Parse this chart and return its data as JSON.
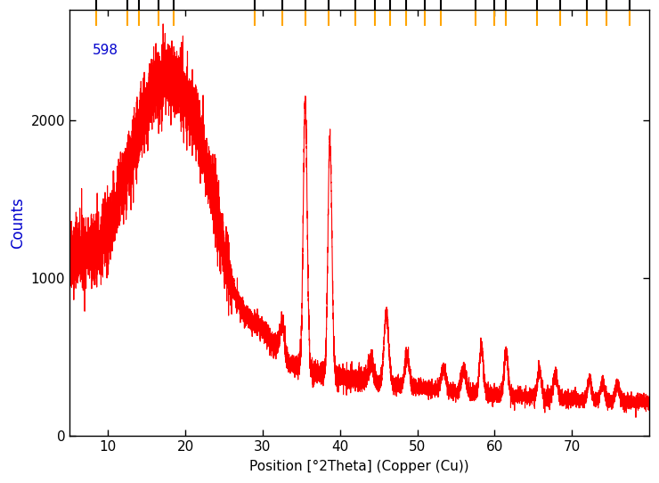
{
  "xlabel": "Position [°2Theta] (Copper (Cu))",
  "ylabel": "Counts",
  "annotation": "598",
  "xlim": [
    5,
    80
  ],
  "ylim": [
    0,
    2700
  ],
  "yticks": [
    0,
    1000,
    2000
  ],
  "xticks": [
    10,
    20,
    30,
    40,
    50,
    60,
    70
  ],
  "line_color": "#FF0000",
  "bg_color": "#FFFFFF",
  "marker_color_orange": "#FFA500",
  "marker_color_black": "#000000",
  "marker_positions": [
    8.5,
    12.5,
    14.0,
    16.5,
    18.5,
    29.0,
    32.5,
    35.5,
    38.5,
    42.0,
    44.5,
    46.5,
    48.5,
    51.0,
    53.0,
    57.5,
    60.0,
    61.5,
    65.5,
    68.5,
    72.0,
    74.5,
    77.5
  ],
  "seed": 42
}
